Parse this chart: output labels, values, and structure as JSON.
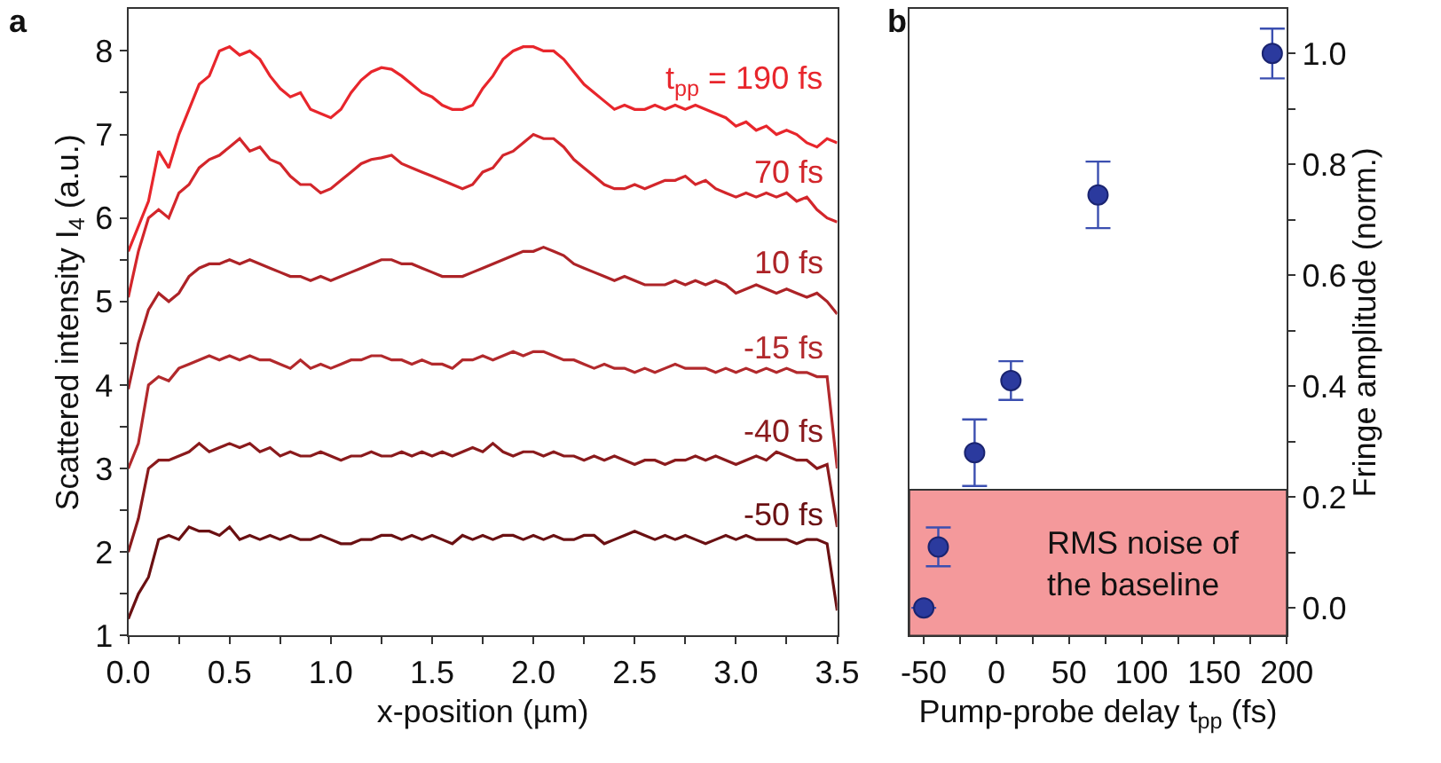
{
  "chart_data": [
    {
      "type": "line",
      "title": "a",
      "xlabel": "x-position (µm)",
      "ylabel": "Scattered intensity I$_{4}$ (a.u.)",
      "x": [
        0,
        0.05,
        0.1,
        0.15,
        0.2,
        0.25,
        0.3,
        0.35,
        0.4,
        0.45,
        0.5,
        0.55,
        0.6,
        0.65,
        0.7,
        0.75,
        0.8,
        0.85,
        0.9,
        0.95,
        1.0,
        1.05,
        1.1,
        1.15,
        1.2,
        1.25,
        1.3,
        1.35,
        1.4,
        1.45,
        1.5,
        1.55,
        1.6,
        1.65,
        1.7,
        1.75,
        1.8,
        1.85,
        1.9,
        1.95,
        2.0,
        2.05,
        2.1,
        2.15,
        2.2,
        2.25,
        2.3,
        2.35,
        2.4,
        2.45,
        2.5,
        2.55,
        2.6,
        2.65,
        2.7,
        2.75,
        2.8,
        2.85,
        2.9,
        2.95,
        3.0,
        3.05,
        3.1,
        3.15,
        3.2,
        3.25,
        3.3,
        3.35,
        3.4,
        3.45,
        3.5
      ],
      "series": [
        {
          "name": "t$_{pp}$ = 190 fs",
          "color": "#e8262c",
          "values": [
            5.6,
            5.9,
            6.2,
            6.8,
            6.6,
            7.0,
            7.3,
            7.6,
            7.7,
            8.0,
            8.05,
            7.95,
            8.0,
            7.9,
            7.7,
            7.55,
            7.45,
            7.5,
            7.3,
            7.25,
            7.2,
            7.3,
            7.5,
            7.65,
            7.75,
            7.8,
            7.78,
            7.7,
            7.6,
            7.5,
            7.45,
            7.35,
            7.3,
            7.3,
            7.35,
            7.55,
            7.7,
            7.9,
            8.0,
            8.05,
            8.05,
            8.0,
            8.0,
            7.9,
            7.75,
            7.6,
            7.5,
            7.4,
            7.3,
            7.35,
            7.3,
            7.3,
            7.35,
            7.3,
            7.35,
            7.3,
            7.35,
            7.3,
            7.25,
            7.2,
            7.1,
            7.15,
            7.05,
            7.1,
            7.0,
            7.05,
            7.0,
            6.9,
            6.85,
            6.95,
            6.9
          ]
        },
        {
          "name": "70 fs",
          "color": "#d3262b",
          "values": [
            5.05,
            5.6,
            6.0,
            6.1,
            6.0,
            6.3,
            6.4,
            6.6,
            6.7,
            6.75,
            6.85,
            6.95,
            6.8,
            6.85,
            6.7,
            6.65,
            6.5,
            6.4,
            6.4,
            6.3,
            6.35,
            6.45,
            6.55,
            6.65,
            6.7,
            6.72,
            6.75,
            6.65,
            6.6,
            6.55,
            6.5,
            6.45,
            6.4,
            6.35,
            6.4,
            6.55,
            6.6,
            6.75,
            6.8,
            6.9,
            7.0,
            6.95,
            6.95,
            6.85,
            6.7,
            6.6,
            6.5,
            6.4,
            6.35,
            6.35,
            6.4,
            6.35,
            6.4,
            6.45,
            6.45,
            6.5,
            6.4,
            6.45,
            6.35,
            6.3,
            6.25,
            6.3,
            6.25,
            6.3,
            6.25,
            6.3,
            6.2,
            6.25,
            6.1,
            6.0,
            5.95
          ]
        },
        {
          "name": "10 fs",
          "color": "#ad2327",
          "values": [
            3.95,
            4.5,
            4.9,
            5.1,
            5.0,
            5.1,
            5.3,
            5.4,
            5.45,
            5.45,
            5.5,
            5.45,
            5.5,
            5.45,
            5.4,
            5.35,
            5.3,
            5.3,
            5.25,
            5.3,
            5.25,
            5.3,
            5.35,
            5.4,
            5.45,
            5.5,
            5.5,
            5.45,
            5.45,
            5.4,
            5.35,
            5.3,
            5.3,
            5.3,
            5.35,
            5.4,
            5.45,
            5.5,
            5.55,
            5.6,
            5.6,
            5.65,
            5.6,
            5.55,
            5.45,
            5.4,
            5.35,
            5.3,
            5.25,
            5.3,
            5.25,
            5.2,
            5.2,
            5.2,
            5.25,
            5.2,
            5.25,
            5.2,
            5.25,
            5.2,
            5.1,
            5.15,
            5.2,
            5.15,
            5.1,
            5.15,
            5.1,
            5.05,
            5.1,
            5.0,
            4.85
          ]
        },
        {
          "name": "-15 fs",
          "color": "#b2292c",
          "values": [
            3.0,
            3.3,
            4.0,
            4.1,
            4.05,
            4.2,
            4.25,
            4.3,
            4.35,
            4.3,
            4.35,
            4.3,
            4.35,
            4.3,
            4.3,
            4.25,
            4.2,
            4.3,
            4.2,
            4.25,
            4.2,
            4.25,
            4.3,
            4.3,
            4.35,
            4.35,
            4.3,
            4.3,
            4.25,
            4.3,
            4.25,
            4.25,
            4.2,
            4.3,
            4.3,
            4.35,
            4.3,
            4.35,
            4.4,
            4.35,
            4.4,
            4.4,
            4.35,
            4.3,
            4.3,
            4.25,
            4.2,
            4.25,
            4.2,
            4.2,
            4.15,
            4.2,
            4.15,
            4.2,
            4.25,
            4.2,
            4.2,
            4.2,
            4.15,
            4.2,
            4.15,
            4.2,
            4.15,
            4.2,
            4.15,
            4.2,
            4.15,
            4.15,
            4.1,
            4.1,
            3.0
          ]
        },
        {
          "name": "-40 fs",
          "color": "#8a1a1c",
          "values": [
            2.0,
            2.4,
            3.0,
            3.1,
            3.1,
            3.15,
            3.2,
            3.3,
            3.2,
            3.25,
            3.3,
            3.25,
            3.3,
            3.2,
            3.25,
            3.15,
            3.2,
            3.15,
            3.15,
            3.2,
            3.15,
            3.1,
            3.15,
            3.15,
            3.2,
            3.15,
            3.15,
            3.2,
            3.15,
            3.2,
            3.15,
            3.2,
            3.15,
            3.2,
            3.25,
            3.2,
            3.3,
            3.2,
            3.15,
            3.2,
            3.2,
            3.15,
            3.2,
            3.15,
            3.15,
            3.1,
            3.15,
            3.1,
            3.15,
            3.1,
            3.05,
            3.1,
            3.1,
            3.05,
            3.1,
            3.1,
            3.15,
            3.1,
            3.15,
            3.1,
            3.05,
            3.1,
            3.15,
            3.1,
            3.2,
            3.15,
            3.1,
            3.1,
            3.0,
            3.05,
            2.3
          ]
        },
        {
          "name": "-50 fs",
          "color": "#6a1012",
          "values": [
            1.2,
            1.5,
            1.7,
            2.15,
            2.2,
            2.15,
            2.3,
            2.25,
            2.25,
            2.2,
            2.3,
            2.15,
            2.2,
            2.15,
            2.2,
            2.15,
            2.2,
            2.15,
            2.15,
            2.2,
            2.15,
            2.1,
            2.1,
            2.15,
            2.15,
            2.2,
            2.2,
            2.15,
            2.2,
            2.15,
            2.2,
            2.15,
            2.1,
            2.2,
            2.15,
            2.2,
            2.15,
            2.2,
            2.2,
            2.15,
            2.2,
            2.15,
            2.2,
            2.15,
            2.15,
            2.2,
            2.2,
            2.1,
            2.15,
            2.2,
            2.25,
            2.2,
            2.15,
            2.2,
            2.15,
            2.2,
            2.15,
            2.1,
            2.15,
            2.2,
            2.15,
            2.2,
            2.15,
            2.15,
            2.15,
            2.15,
            2.1,
            2.15,
            2.15,
            2.1,
            1.3
          ]
        }
      ],
      "xlim": [
        0,
        3.5
      ],
      "xticks": [
        {
          "value": 0,
          "label": "0.0"
        },
        {
          "value": 0.25,
          "label": null
        },
        {
          "value": 0.5,
          "label": "0.5"
        },
        {
          "value": 0.75,
          "label": null
        },
        {
          "value": 1,
          "label": "1.0"
        },
        {
          "value": 1.25,
          "label": null
        },
        {
          "value": 1.5,
          "label": "1.5"
        },
        {
          "value": 1.75,
          "label": null
        },
        {
          "value": 2,
          "label": "2.0"
        },
        {
          "value": 2.25,
          "label": null
        },
        {
          "value": 2.5,
          "label": "2.5"
        },
        {
          "value": 2.75,
          "label": null
        },
        {
          "value": 3,
          "label": "3.0"
        },
        {
          "value": 3.25,
          "label": null
        },
        {
          "value": 3.5,
          "label": "3.5"
        }
      ],
      "ylim": [
        1,
        8.5
      ],
      "yticks": [
        1,
        {
          "value": 1.5,
          "label": null
        },
        2,
        {
          "value": 2.5,
          "label": null
        },
        3,
        {
          "value": 3.5,
          "label": null
        },
        4,
        {
          "value": 4.5,
          "label": null
        },
        5,
        {
          "value": 5.5,
          "label": null
        },
        6,
        {
          "value": 6.5,
          "label": null
        },
        7,
        {
          "value": 7.5,
          "label": null
        },
        8
      ],
      "grid": false,
      "legend": false,
      "marker": "none",
      "line_style": "solid"
    },
    {
      "type": "scatter",
      "title": "b",
      "xlabel": "Pump-probe delay t$_{pp}$ (fs)",
      "y2label": "Fringe amplitude (norm.)",
      "x": [
        -50,
        -40,
        -15,
        10,
        70,
        190
      ],
      "series": [
        {
          "color": "#2b3a9e",
          "axis": "y2",
          "values": [
            0.0,
            0.11,
            0.28,
            0.41,
            0.745,
            1.0
          ],
          "errors": [
            null,
            0.035,
            0.06,
            0.035,
            0.06,
            0.045
          ]
        }
      ],
      "bands": [
        {
          "axis": "y2",
          "from": -0.05,
          "to": 0.213,
          "label": "RMS noise of\nthe baseline",
          "color": "#f4999b"
        }
      ],
      "xlim": [
        -60,
        200
      ],
      "xticks": [
        -50,
        {
          "value": -25,
          "label": null
        },
        0,
        {
          "value": 25,
          "label": null
        },
        50,
        {
          "value": 75,
          "label": null
        },
        100,
        {
          "value": 125,
          "label": null
        },
        150,
        {
          "value": 175,
          "label": null
        },
        200
      ],
      "y2lim": [
        -0.05,
        1.08
      ],
      "y2ticks": [
        {
          "value": 0,
          "label": "0.0"
        },
        {
          "value": 0.1,
          "label": null
        },
        {
          "value": 0.2,
          "label": "0.2"
        },
        {
          "value": 0.3,
          "label": null
        },
        {
          "value": 0.4,
          "label": "0.4"
        },
        {
          "value": 0.5,
          "label": null
        },
        {
          "value": 0.6,
          "label": "0.6"
        },
        {
          "value": 0.7,
          "label": null
        },
        {
          "value": 0.8,
          "label": "0.8"
        },
        {
          "value": 0.9,
          "label": null
        },
        {
          "value": 1.0,
          "label": "1.0"
        }
      ],
      "grid": false,
      "legend": false,
      "marker": "circle"
    }
  ]
}
